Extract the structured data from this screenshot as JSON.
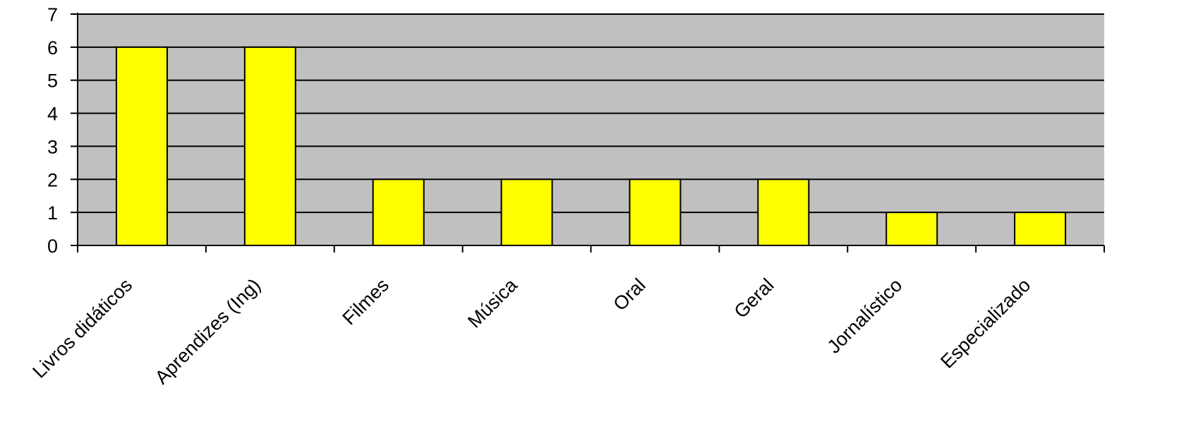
{
  "chart_data": {
    "type": "bar",
    "title": "",
    "xlabel": "",
    "ylabel": "",
    "categories": [
      "Livros didáticos",
      "Aprendizes (Ing)",
      "Filmes",
      "Música",
      "Oral",
      "Geral",
      "Jornalístico",
      "Especializado"
    ],
    "values": [
      6,
      6,
      2,
      2,
      2,
      2,
      1,
      1
    ],
    "ylim": [
      0,
      7
    ],
    "yticks": [
      "0",
      "1",
      "2",
      "3",
      "4",
      "5",
      "6",
      "7"
    ],
    "grid": true,
    "legend": "none",
    "colors": {
      "bar_fill": "#FFFF00",
      "bar_stroke": "#000000",
      "plot_background": "#C0C0C0",
      "gridline": "#000000"
    }
  }
}
